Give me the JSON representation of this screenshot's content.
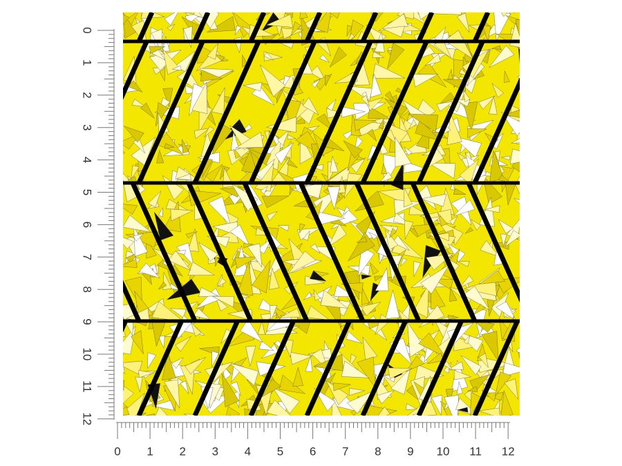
{
  "rulers": {
    "left": {
      "labels": [
        "0",
        "1",
        "2",
        "3",
        "4",
        "5",
        "6",
        "7",
        "8",
        "9",
        "10",
        "11",
        "12"
      ]
    },
    "bottom": {
      "labels": [
        "0",
        "1",
        "2",
        "3",
        "4",
        "5",
        "6",
        "7",
        "8",
        "9",
        "10",
        "11",
        "12"
      ]
    }
  }
}
